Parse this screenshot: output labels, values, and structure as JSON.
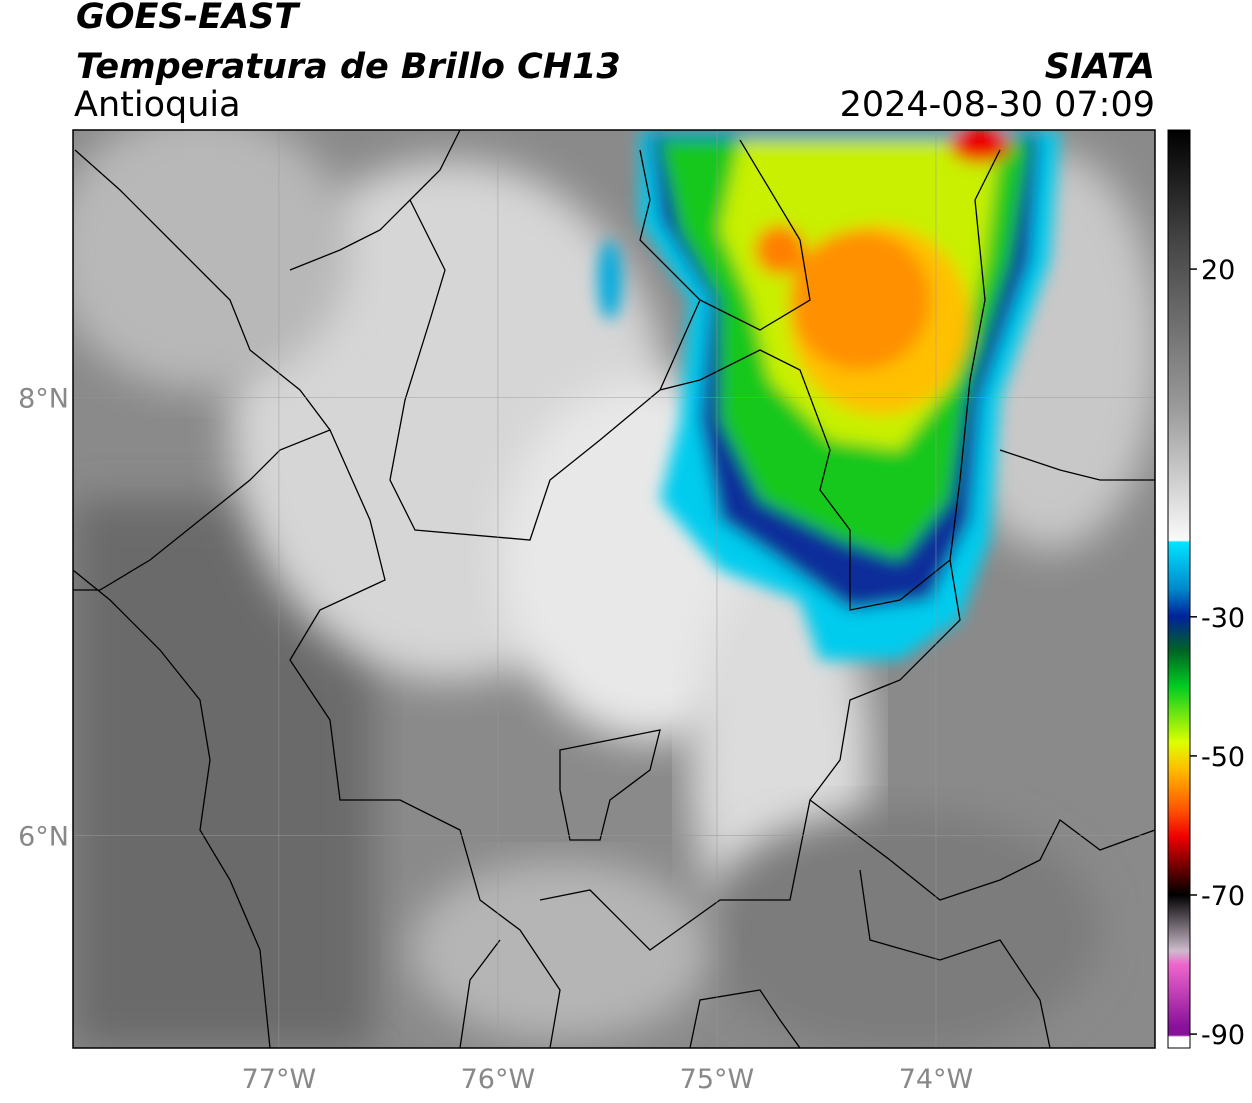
{
  "header": {
    "title": "GOES-EAST",
    "subtitle": "Temperatura de Brillo CH13",
    "region": "Antioquia",
    "source": "SIATA",
    "datetime": "2024-08-30 07:09"
  },
  "map": {
    "xlim": [
      -77.94,
      -73.0
    ],
    "ylim": [
      5.03,
      9.22
    ],
    "xticks": [
      {
        "value": -77,
        "label": "77°W"
      },
      {
        "value": -76,
        "label": "76°W"
      },
      {
        "value": -75,
        "label": "75°W"
      },
      {
        "value": -74,
        "label": "74°W"
      }
    ],
    "yticks": [
      {
        "value": 8,
        "label": "8°N"
      },
      {
        "value": 6,
        "label": "6°N"
      }
    ],
    "grid": true
  },
  "colorbar": {
    "lim": [
      -92,
      40
    ],
    "ticks": [
      20,
      -30,
      -50,
      -70,
      -90
    ]
  }
}
